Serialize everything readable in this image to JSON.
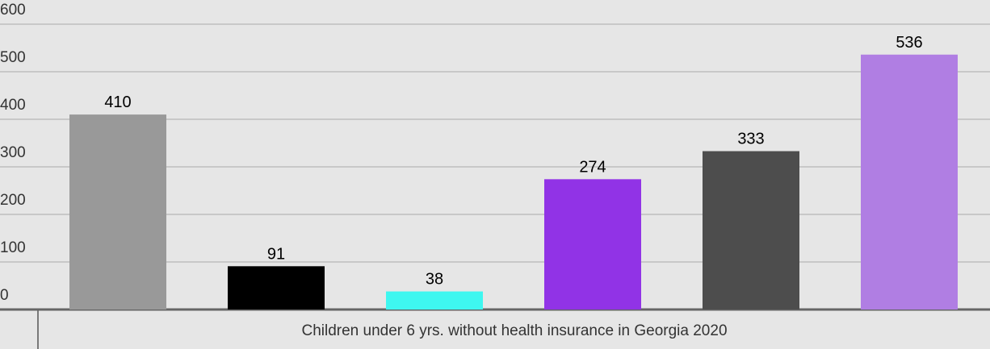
{
  "chart_data": {
    "type": "bar",
    "x_label": "Children under 6 yrs. without health insurance in Georgia 2020",
    "categories": [
      null,
      null,
      null,
      null,
      null,
      null
    ],
    "values": [
      410,
      91,
      38,
      274,
      333,
      536
    ],
    "colors": [
      "#999999",
      "#000000",
      "#3ef7f0",
      "#9133e6",
      "#4d4d4d",
      "#b07ee3"
    ],
    "ylim": [
      0,
      600
    ],
    "yticks": [
      0,
      100,
      200,
      300,
      400,
      500,
      600
    ],
    "grid": true
  }
}
